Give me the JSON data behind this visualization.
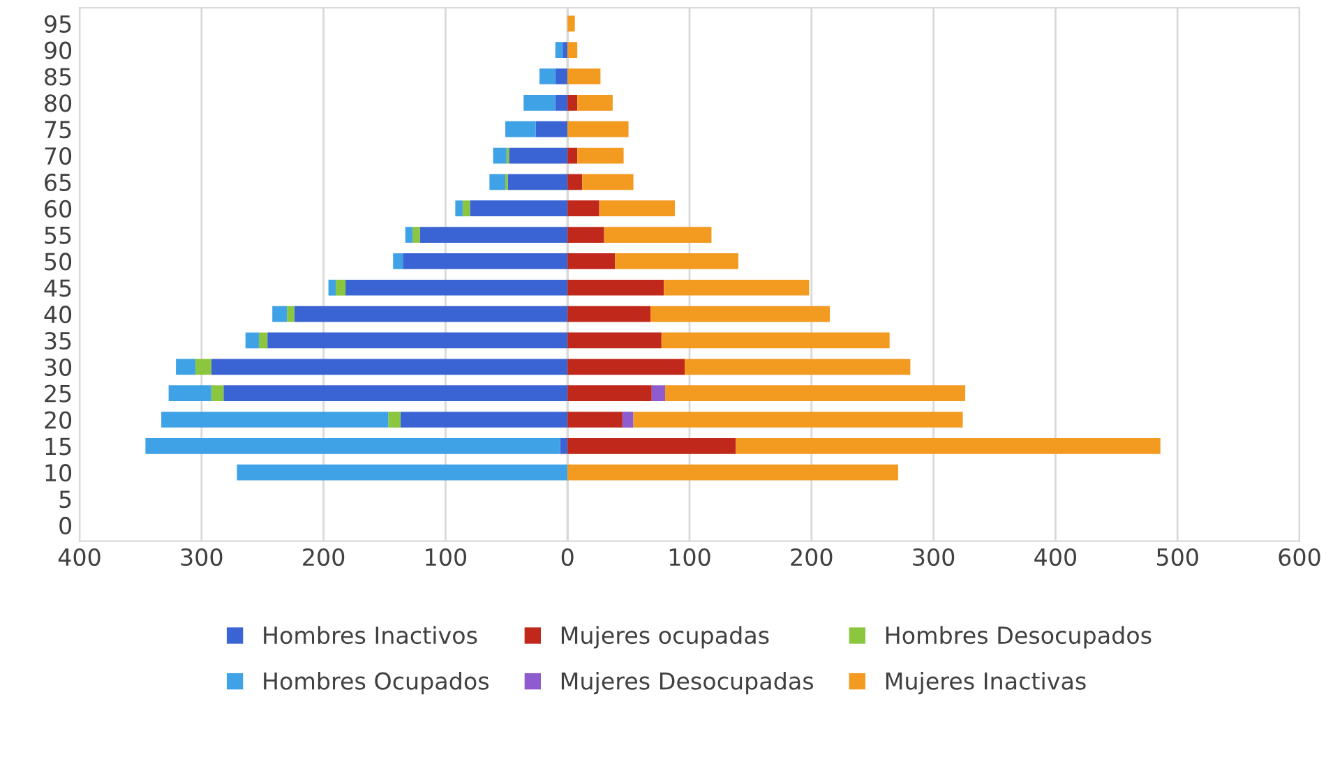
{
  "chart_data": {
    "type": "bar",
    "orientation": "horizontal",
    "stacked": true,
    "categories": [
      "95",
      "90",
      "85",
      "80",
      "75",
      "70",
      "65",
      "60",
      "55",
      "50",
      "45",
      "40",
      "35",
      "30",
      "25",
      "20",
      "15",
      "10",
      "5",
      "0"
    ],
    "series": [
      {
        "name": "Hombres Inactivos",
        "color": "#3a64d4",
        "values": [
          null,
          -4,
          -10,
          -10,
          -26,
          -48,
          -49,
          -80,
          -121,
          -135,
          -182,
          -224,
          -246,
          -292,
          -282,
          -137,
          -6,
          null,
          null,
          null
        ]
      },
      {
        "name": "Mujeres ocupadas",
        "color": "#c0281c",
        "values": [
          null,
          null,
          null,
          8,
          null,
          8,
          12,
          26,
          30,
          39,
          79,
          68,
          77,
          96,
          69,
          45,
          138,
          null,
          null,
          null
        ]
      },
      {
        "name": "Hombres Desocupados",
        "color": "#8cc63f",
        "values": [
          null,
          null,
          null,
          null,
          null,
          -2,
          -2,
          -6,
          -6,
          null,
          -8,
          -6,
          -7,
          -13,
          -10,
          -10,
          null,
          null,
          null,
          null
        ]
      },
      {
        "name": "Hombres Ocupados",
        "color": "#3fa2e6",
        "values": [
          null,
          -6,
          -13,
          -26,
          -25,
          -11,
          -13,
          -6,
          -6,
          -8,
          -6,
          -12,
          -11,
          -16,
          -35,
          -186,
          -340,
          -271,
          null,
          null
        ]
      },
      {
        "name": "Mujeres Desocupadas",
        "color": "#8e5ccf",
        "values": [
          null,
          null,
          null,
          null,
          null,
          null,
          null,
          null,
          null,
          null,
          null,
          null,
          null,
          null,
          11,
          9,
          null,
          null,
          null,
          null
        ]
      },
      {
        "name": "Mujeres Inactivas",
        "color": "#f39a21",
        "values": [
          6,
          8,
          27,
          29,
          50,
          38,
          42,
          62,
          88,
          101,
          119,
          147,
          187,
          185,
          246,
          270,
          348,
          271,
          null,
          null
        ]
      }
    ],
    "xlim": [
      -400,
      600
    ],
    "xticks": [
      {
        "value": -400,
        "label": "400"
      },
      {
        "value": -300,
        "label": "300"
      },
      {
        "value": -200,
        "label": "200"
      },
      {
        "value": -100,
        "label": "100"
      },
      0,
      100,
      200,
      300,
      400,
      500,
      600
    ],
    "grid": "x",
    "legend": "bottom"
  }
}
